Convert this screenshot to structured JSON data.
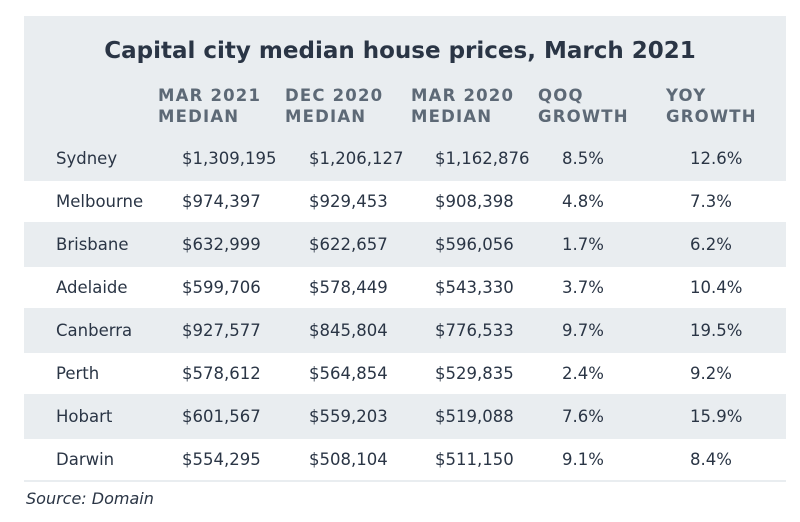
{
  "table": {
    "title": "Capital city median house prices, March 2021",
    "columns": [
      "",
      "MAR 2021\nMEDIAN",
      "DEC 2020\nMEDIAN",
      "MAR 2020\nMEDIAN",
      "QOQ\nGROWTH",
      "YOY\nGROWTH"
    ],
    "rows": [
      [
        "Sydney",
        "$1,309,195",
        "$1,206,127",
        "$1,162,876",
        "8.5%",
        "12.6%"
      ],
      [
        "Melbourne",
        "$974,397",
        "$929,453",
        "$908,398",
        "4.8%",
        "7.3%"
      ],
      [
        "Brisbane",
        "$632,999",
        "$622,657",
        "$596,056",
        "1.7%",
        "6.2%"
      ],
      [
        "Adelaide",
        "$599,706",
        "$578,449",
        "$543,330",
        "3.7%",
        "10.4%"
      ],
      [
        "Canberra",
        "$927,577",
        "$845,804",
        "$776,533",
        "9.7%",
        "19.5%"
      ],
      [
        "Perth",
        "$578,612",
        "$564,854",
        "$529,835",
        "2.4%",
        "9.2%"
      ],
      [
        "Hobart",
        "$601,567",
        "$559,203",
        "$519,088",
        "7.6%",
        "15.9%"
      ],
      [
        "Darwin",
        "$554,295",
        "$508,104",
        "$511,150",
        "9.1%",
        "8.4%"
      ]
    ],
    "source": "Source: Domain"
  },
  "colors": {
    "panel_background": "#e9edf0",
    "alternate_row": "#ffffff",
    "text": "#2a3545",
    "header_text": "#5d6976"
  }
}
